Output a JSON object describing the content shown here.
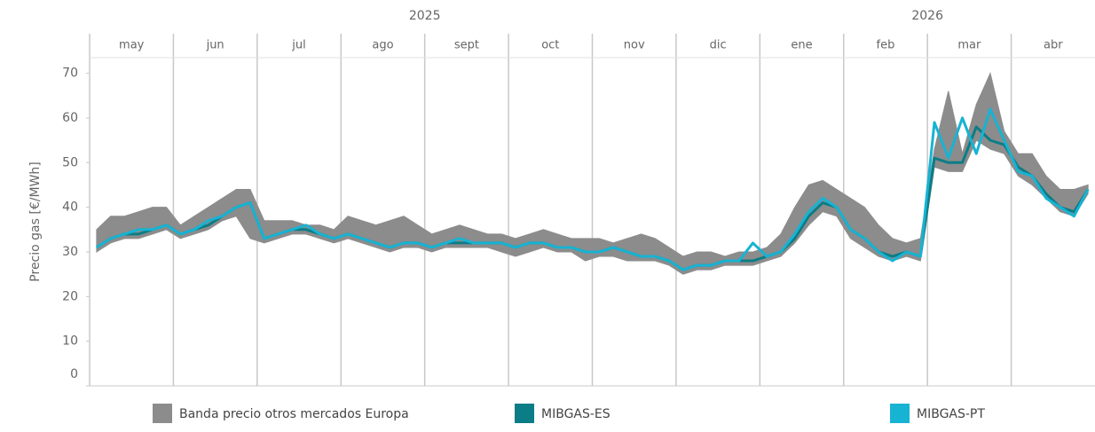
{
  "chart_data": {
    "type": "line",
    "y_label": "Precio gas [€/MWh]",
    "years": [
      {
        "label": "2025",
        "months": [
          "may",
          "jun",
          "jul",
          "ago",
          "sept",
          "oct",
          "nov",
          "dic"
        ]
      },
      {
        "label": "2026",
        "months": [
          "ene",
          "feb",
          "mar",
          "abr"
        ]
      }
    ],
    "ylim": [
      0,
      73.5
    ],
    "yticks": [
      0,
      10,
      20,
      30,
      40,
      50,
      60,
      70
    ],
    "series": [
      {
        "name": "Banda precio otros mercados Europa",
        "color": "#8c8c8c",
        "low": [
          30,
          32,
          33,
          33,
          34,
          35,
          33,
          34,
          35,
          37,
          38,
          33,
          32,
          33,
          34,
          34,
          33,
          32,
          33,
          32,
          31,
          30,
          31,
          31,
          30,
          31,
          31,
          31,
          31,
          30,
          29,
          30,
          31,
          30,
          30,
          28,
          29,
          29,
          28,
          28,
          28,
          27,
          25,
          26,
          26,
          27,
          27,
          27,
          28,
          29,
          32,
          36,
          39,
          38,
          33,
          31,
          29,
          28,
          29,
          28,
          49,
          48,
          48,
          55,
          53,
          52,
          47,
          45,
          42,
          39,
          38,
          43
        ],
        "high": [
          35,
          38,
          38,
          39,
          40,
          40,
          36,
          38,
          40,
          42,
          44,
          44,
          37,
          37,
          37,
          36,
          36,
          35,
          38,
          37,
          36,
          37,
          38,
          36,
          34,
          35,
          36,
          35,
          34,
          34,
          33,
          34,
          35,
          34,
          33,
          33,
          33,
          32,
          33,
          34,
          33,
          31,
          29,
          30,
          30,
          29,
          30,
          30,
          31,
          34,
          40,
          45,
          46,
          44,
          42,
          40,
          36,
          33,
          32,
          33,
          53,
          66,
          52,
          63,
          70,
          57,
          52,
          52,
          47,
          44,
          44,
          45
        ]
      },
      {
        "name": "MIBGAS-ES",
        "color": "#0b7d86",
        "values": [
          31,
          33,
          34,
          34,
          35,
          36,
          34,
          35,
          36,
          38,
          40,
          41,
          33,
          34,
          35,
          35,
          34,
          33,
          34,
          33,
          32,
          31,
          32,
          32,
          31,
          32,
          32,
          32,
          32,
          32,
          31,
          32,
          32,
          31,
          31,
          30,
          30,
          31,
          30,
          29,
          29,
          28,
          26,
          27,
          27,
          28,
          28,
          28,
          29,
          30,
          33,
          38,
          41,
          40,
          35,
          33,
          30,
          29,
          30,
          29,
          51,
          50,
          50,
          58,
          55,
          54,
          49,
          47,
          43,
          40,
          39,
          44
        ]
      },
      {
        "name": "MIBGAS-PT",
        "color": "#17b3d3",
        "values": [
          31,
          33,
          34,
          35,
          35,
          36,
          34,
          35,
          37,
          38,
          40,
          41,
          33,
          34,
          35,
          36,
          34,
          33,
          34,
          33,
          32,
          31,
          32,
          32,
          31,
          32,
          33,
          32,
          32,
          32,
          31,
          32,
          32,
          31,
          31,
          30,
          30,
          31,
          30,
          29,
          29,
          28,
          26,
          27,
          27,
          28,
          28,
          32,
          29,
          30,
          34,
          39,
          42,
          40,
          35,
          33,
          30,
          28,
          30,
          29,
          59,
          51,
          60,
          52,
          62,
          55,
          48,
          47,
          42,
          40,
          38,
          44
        ]
      }
    ]
  }
}
